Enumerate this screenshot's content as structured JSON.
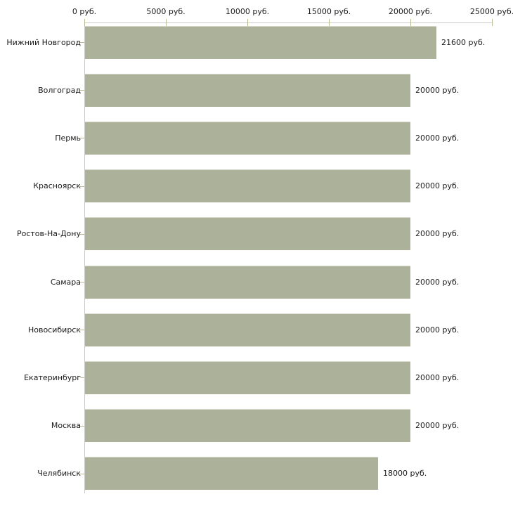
{
  "chart_data": {
    "type": "bar",
    "orientation": "horizontal",
    "title": "",
    "xlabel": "",
    "ylabel": "",
    "grid": false,
    "legend": null,
    "categories": [
      "Нижний Новгород",
      "Волгоград",
      "Пермь",
      "Красноярск",
      "Ростов-На-Дону",
      "Самара",
      "Новосибирск",
      "Екатеринбург",
      "Москва",
      "Челябинск"
    ],
    "values": [
      21600,
      20000,
      20000,
      20000,
      20000,
      20000,
      20000,
      20000,
      20000,
      18000
    ],
    "value_labels": [
      "21600 руб.",
      "20000 руб.",
      "20000 руб.",
      "20000 руб.",
      "20000 руб.",
      "20000 руб.",
      "20000 руб.",
      "20000 руб.",
      "20000 руб.",
      "18000 руб."
    ],
    "x_axis": {
      "position": "top",
      "min": 0,
      "max": 25000,
      "ticks": [
        0,
        5000,
        10000,
        15000,
        20000,
        25000
      ],
      "tick_labels": [
        "0 руб.",
        "5000 руб.",
        "10000 руб.",
        "15000 руб.",
        "20000 руб.",
        "25000 руб."
      ]
    },
    "colors": {
      "bar": "#acb299",
      "axis": "#c9c9c9",
      "tick": "#b9bc8e",
      "text": "#1a1a1a",
      "background": "#ffffff"
    }
  }
}
